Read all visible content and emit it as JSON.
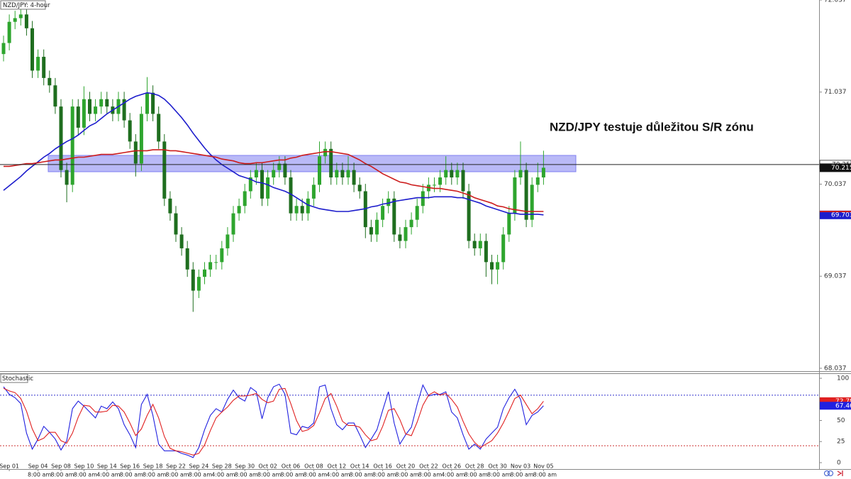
{
  "chart_data": {
    "type": "candlestick",
    "title": "NZD/JPY: 4-hour",
    "annotation": "NZD/JPY testuje důležitou S/R zónu",
    "categories": [
      null,
      "Sep 01",
      null,
      null,
      null,
      null,
      "Sep 04",
      null,
      null,
      null,
      "Sep 08",
      null,
      null,
      null,
      "Sep 10",
      null,
      null,
      null,
      "Sep 14",
      null,
      null,
      null,
      "Sep 16",
      null,
      null,
      null,
      "Sep 18",
      null,
      null,
      null,
      "Sep 22",
      null,
      null,
      null,
      "Sep 24",
      null,
      null,
      null,
      "Sep 28",
      null,
      null,
      null,
      "Sep 30",
      null,
      null,
      null,
      "Oct 02",
      null,
      null,
      null,
      "Oct 06",
      null,
      null,
      null,
      "Oct 08",
      null,
      null,
      null,
      "Oct 12",
      null,
      null,
      null,
      "Oct 14",
      null,
      null,
      null,
      "Oct 16",
      null,
      null,
      null,
      "Oct 20",
      null,
      null,
      null,
      "Oct 22",
      null,
      null,
      null,
      "Oct 26",
      null,
      null,
      null,
      "Oct 28",
      null,
      null,
      null,
      "Oct 30",
      null,
      null,
      null,
      "Nov 03",
      null,
      null,
      null,
      "Nov 05"
    ],
    "times": [
      null,
      null,
      null,
      null,
      null,
      null,
      "8:00 am",
      null,
      null,
      null,
      "8:00 am",
      null,
      null,
      null,
      "8:00 am",
      null,
      null,
      null,
      "4:00 am",
      null,
      null,
      null,
      "8:00 am",
      null,
      null,
      null,
      "8:00 am",
      null,
      null,
      null,
      "8:00 am",
      null,
      null,
      null,
      "8:00 am",
      null,
      null,
      null,
      "4:00 am",
      null,
      null,
      null,
      "8:00 am",
      null,
      null,
      null,
      "8:00 am",
      null,
      null,
      null,
      "8:00 am",
      null,
      null,
      null,
      "8:00 am",
      null,
      null,
      null,
      "4:00 am",
      null,
      null,
      null,
      "8:00 am",
      null,
      null,
      null,
      "8:00 am",
      null,
      null,
      null,
      "8:00 am",
      null,
      null,
      null,
      "8:00 am",
      null,
      null,
      null,
      "4:00 am",
      null,
      null,
      null,
      "8:00 am",
      null,
      null,
      null,
      "8:00 am",
      null,
      null,
      null,
      "8:00 am",
      null,
      null,
      null,
      "8:00 am"
    ],
    "open": [
      71.45,
      71.57,
      71.8,
      71.84,
      71.88,
      71.73,
      71.27,
      71.42,
      71.19,
      71.11,
      70.88,
      70.19,
      70.03,
      70.88,
      70.65,
      70.96,
      70.8,
      70.88,
      70.96,
      70.88,
      70.8,
      70.96,
      70.73,
      70.5,
      70.26,
      70.8,
      71.03,
      70.8,
      70.5,
      69.88,
      69.72,
      69.49,
      69.34,
      69.11,
      68.88,
      69.03,
      69.11,
      69.19,
      69.19,
      69.34,
      69.49,
      69.72,
      69.8,
      69.96,
      70.11,
      70.19,
      69.88,
      70.11,
      70.19,
      70.26,
      70.11,
      69.72,
      69.8,
      69.72,
      69.88,
      70.03,
      70.34,
      70.42,
      70.11,
      70.19,
      70.11,
      70.19,
      70.03,
      69.96,
      69.57,
      69.49,
      69.65,
      69.8,
      69.88,
      69.49,
      69.42,
      69.57,
      69.65,
      69.8,
      69.96,
      70.03,
      70.03,
      70.11,
      70.19,
      70.11,
      70.19,
      69.96,
      69.42,
      69.34,
      69.42,
      69.19,
      69.11,
      69.19,
      69.49,
      69.72,
      70.11,
      70.19,
      69.65,
      70.03,
      70.11
    ],
    "high": [
      71.65,
      71.88,
      71.92,
      72.0,
      71.96,
      71.81,
      71.5,
      71.5,
      71.27,
      71.19,
      70.96,
      70.27,
      70.96,
      70.96,
      71.1,
      71.04,
      70.96,
      71.04,
      71.04,
      70.96,
      71.04,
      71.04,
      70.81,
      70.58,
      70.88,
      71.2,
      71.11,
      70.88,
      70.58,
      69.96,
      69.8,
      69.57,
      69.42,
      69.19,
      69.11,
      69.19,
      69.27,
      69.27,
      69.42,
      69.57,
      69.8,
      69.88,
      70.04,
      70.19,
      70.27,
      70.27,
      70.19,
      70.27,
      70.34,
      70.34,
      70.19,
      69.88,
      69.88,
      69.96,
      70.11,
      70.5,
      70.5,
      70.5,
      70.27,
      70.27,
      70.34,
      70.27,
      70.11,
      70.04,
      69.65,
      69.73,
      69.88,
      69.96,
      69.96,
      69.57,
      69.65,
      69.73,
      69.88,
      70.04,
      70.11,
      70.11,
      70.19,
      70.34,
      70.27,
      70.27,
      70.27,
      70.04,
      69.5,
      69.5,
      69.5,
      69.27,
      69.27,
      69.57,
      69.8,
      70.19,
      70.5,
      70.27,
      70.11,
      70.27,
      70.4
    ],
    "low": [
      71.37,
      71.49,
      71.72,
      71.76,
      71.65,
      71.19,
      71.19,
      71.11,
      71.03,
      70.8,
      70.11,
      69.84,
      69.95,
      70.57,
      70.57,
      70.72,
      70.72,
      70.8,
      70.8,
      70.72,
      70.72,
      70.65,
      70.42,
      70.12,
      70.18,
      70.72,
      70.72,
      70.42,
      69.8,
      69.64,
      69.41,
      69.26,
      69.03,
      68.65,
      68.8,
      68.95,
      69.03,
      69.11,
      69.11,
      69.26,
      69.41,
      69.64,
      69.72,
      69.88,
      70.03,
      69.8,
      69.8,
      70.03,
      70.11,
      70.03,
      69.64,
      69.64,
      69.64,
      69.64,
      69.8,
      69.95,
      70.26,
      70.03,
      70.03,
      70.03,
      70.03,
      69.95,
      69.88,
      69.45,
      69.41,
      69.41,
      69.57,
      69.72,
      69.41,
      69.34,
      69.34,
      69.49,
      69.57,
      69.72,
      69.88,
      69.95,
      69.95,
      70.03,
      70.03,
      70.03,
      69.88,
      69.34,
      69.26,
      69.26,
      69.03,
      68.95,
      68.95,
      69.11,
      69.41,
      69.64,
      70.03,
      69.57,
      69.57,
      69.95,
      70.03
    ],
    "close": [
      71.57,
      71.8,
      71.84,
      71.88,
      71.73,
      71.27,
      71.42,
      71.19,
      71.11,
      70.88,
      70.19,
      70.03,
      70.88,
      70.65,
      70.96,
      70.8,
      70.88,
      70.96,
      70.88,
      70.8,
      70.96,
      70.73,
      70.5,
      70.26,
      70.8,
      71.03,
      70.8,
      70.5,
      69.88,
      69.72,
      69.49,
      69.34,
      69.11,
      68.88,
      69.03,
      69.11,
      69.19,
      69.19,
      69.34,
      69.49,
      69.72,
      69.8,
      69.96,
      70.11,
      70.19,
      69.88,
      70.11,
      70.19,
      70.26,
      70.11,
      69.72,
      69.8,
      69.72,
      69.88,
      70.03,
      70.34,
      70.42,
      70.11,
      70.19,
      70.11,
      70.19,
      70.03,
      69.96,
      69.57,
      69.49,
      69.65,
      69.8,
      69.88,
      69.49,
      69.42,
      69.57,
      69.65,
      69.8,
      69.96,
      70.03,
      70.03,
      70.11,
      70.19,
      70.11,
      70.19,
      69.96,
      69.42,
      69.34,
      69.42,
      69.19,
      69.11,
      69.19,
      69.49,
      69.72,
      70.11,
      70.19,
      69.65,
      70.03,
      70.11,
      70.215
    ],
    "up_color": "#2ea52e",
    "down_color": "#1f6e1f",
    "ylim": [
      68.006,
      72.037
    ],
    "yticks": [
      68.037,
      69.037,
      70.037,
      71.037,
      72.037
    ],
    "ma_series": [
      {
        "color": "#1c1ccc",
        "values": [
          69.97,
          70.02,
          70.07,
          70.12,
          70.18,
          70.23,
          70.28,
          70.33,
          70.37,
          70.42,
          70.46,
          70.5,
          70.53,
          70.57,
          70.62,
          70.67,
          70.7,
          70.75,
          70.8,
          70.84,
          70.88,
          70.92,
          70.96,
          70.99,
          71.01,
          71.03,
          71.02,
          71.0,
          70.96,
          70.9,
          70.83,
          70.76,
          70.68,
          70.59,
          70.51,
          70.43,
          70.36,
          70.3,
          70.25,
          70.21,
          70.17,
          70.13,
          70.11,
          70.09,
          70.06,
          70.05,
          70.03,
          70.0,
          69.98,
          69.96,
          69.93,
          69.89,
          69.85,
          69.81,
          69.79,
          69.77,
          69.76,
          69.75,
          69.74,
          69.74,
          69.74,
          69.75,
          69.76,
          69.77,
          69.79,
          69.8,
          69.82,
          69.83,
          69.85,
          69.86,
          69.87,
          69.88,
          69.89,
          69.89,
          69.89,
          69.9,
          69.9,
          69.9,
          69.9,
          69.89,
          69.89,
          69.87,
          69.85,
          69.83,
          69.8,
          69.78,
          69.76,
          69.74,
          69.72,
          69.72,
          69.71,
          69.71,
          69.71,
          69.71,
          69.703
        ]
      },
      {
        "color": "#cc1c1c",
        "values": [
          70.23,
          70.23,
          70.24,
          70.25,
          70.26,
          70.26,
          70.27,
          70.28,
          70.29,
          70.3,
          70.3,
          70.31,
          70.32,
          70.33,
          70.33,
          70.34,
          70.35,
          70.36,
          70.36,
          70.36,
          70.37,
          70.38,
          70.39,
          70.4,
          70.4,
          70.4,
          70.41,
          70.41,
          70.41,
          70.4,
          70.4,
          70.39,
          70.38,
          70.37,
          70.36,
          70.35,
          70.34,
          70.33,
          70.31,
          70.3,
          70.29,
          70.27,
          70.26,
          70.26,
          70.27,
          70.27,
          70.28,
          70.29,
          70.3,
          70.3,
          70.32,
          70.33,
          70.35,
          70.36,
          70.37,
          70.38,
          70.39,
          70.39,
          70.38,
          70.37,
          70.36,
          70.33,
          70.3,
          70.26,
          70.23,
          70.19,
          70.15,
          70.12,
          70.09,
          70.06,
          70.05,
          70.03,
          70.02,
          70.01,
          70.0,
          69.99,
          69.99,
          69.98,
          69.97,
          69.96,
          69.94,
          69.92,
          69.89,
          69.87,
          69.85,
          69.83,
          69.8,
          69.79,
          69.77,
          69.76,
          69.75,
          69.74,
          69.74,
          69.74,
          69.74
        ]
      }
    ],
    "zone": [
      70.172,
      70.349
    ],
    "zone_color": "#7f7ff0",
    "price_line": {
      "value": 70.25,
      "label": "70.250"
    },
    "last_price": 70.215,
    "stochastic": {
      "title": "Stochastic",
      "ylim": [
        -7.6,
        105.1
      ],
      "yticks": [
        0,
        25,
        50,
        100
      ],
      "levels": [
        20,
        80
      ],
      "series": [
        {
          "color": "#2020e0",
          "values": [
            90,
            81,
            77,
            70,
            35,
            16,
            28,
            43,
            36,
            28,
            15,
            26,
            64,
            73,
            67,
            60,
            53,
            67,
            64,
            72,
            64,
            45,
            33,
            18,
            69,
            81,
            56,
            22,
            14,
            14,
            14,
            11,
            9,
            6,
            18,
            39,
            56,
            64,
            60,
            75,
            86,
            77,
            73,
            89,
            84,
            52,
            77,
            90,
            93,
            81,
            35,
            33,
            43,
            41,
            47,
            90,
            92,
            64,
            45,
            39,
            47,
            47,
            33,
            18,
            28,
            39,
            62,
            84,
            47,
            22,
            33,
            42,
            69,
            92,
            79,
            81,
            81,
            84,
            60,
            53,
            33,
            16,
            22,
            16,
            28,
            35,
            42,
            64,
            77,
            87,
            75,
            45,
            56,
            60,
            67.46
          ]
        },
        {
          "color": "#e02020",
          "values": [
            88,
            85,
            83,
            76,
            61,
            40,
            26,
            29,
            36,
            36,
            26,
            23,
            35,
            54,
            68,
            67,
            60,
            60,
            61,
            68,
            67,
            60,
            47,
            32,
            40,
            56,
            69,
            53,
            31,
            17,
            14,
            13,
            11,
            9,
            11,
            21,
            38,
            53,
            60,
            66,
            74,
            79,
            79,
            80,
            82,
            75,
            71,
            73,
            87,
            88,
            70,
            50,
            37,
            39,
            44,
            59,
            76,
            82,
            67,
            49,
            44,
            44,
            42,
            33,
            26,
            28,
            43,
            62,
            64,
            51,
            34,
            32,
            48,
            68,
            80,
            84,
            80,
            82,
            75,
            66,
            49,
            34,
            24,
            18,
            22,
            26,
            35,
            47,
            61,
            76,
            80,
            69,
            58,
            64,
            72.78
          ]
        }
      ]
    }
  }
}
